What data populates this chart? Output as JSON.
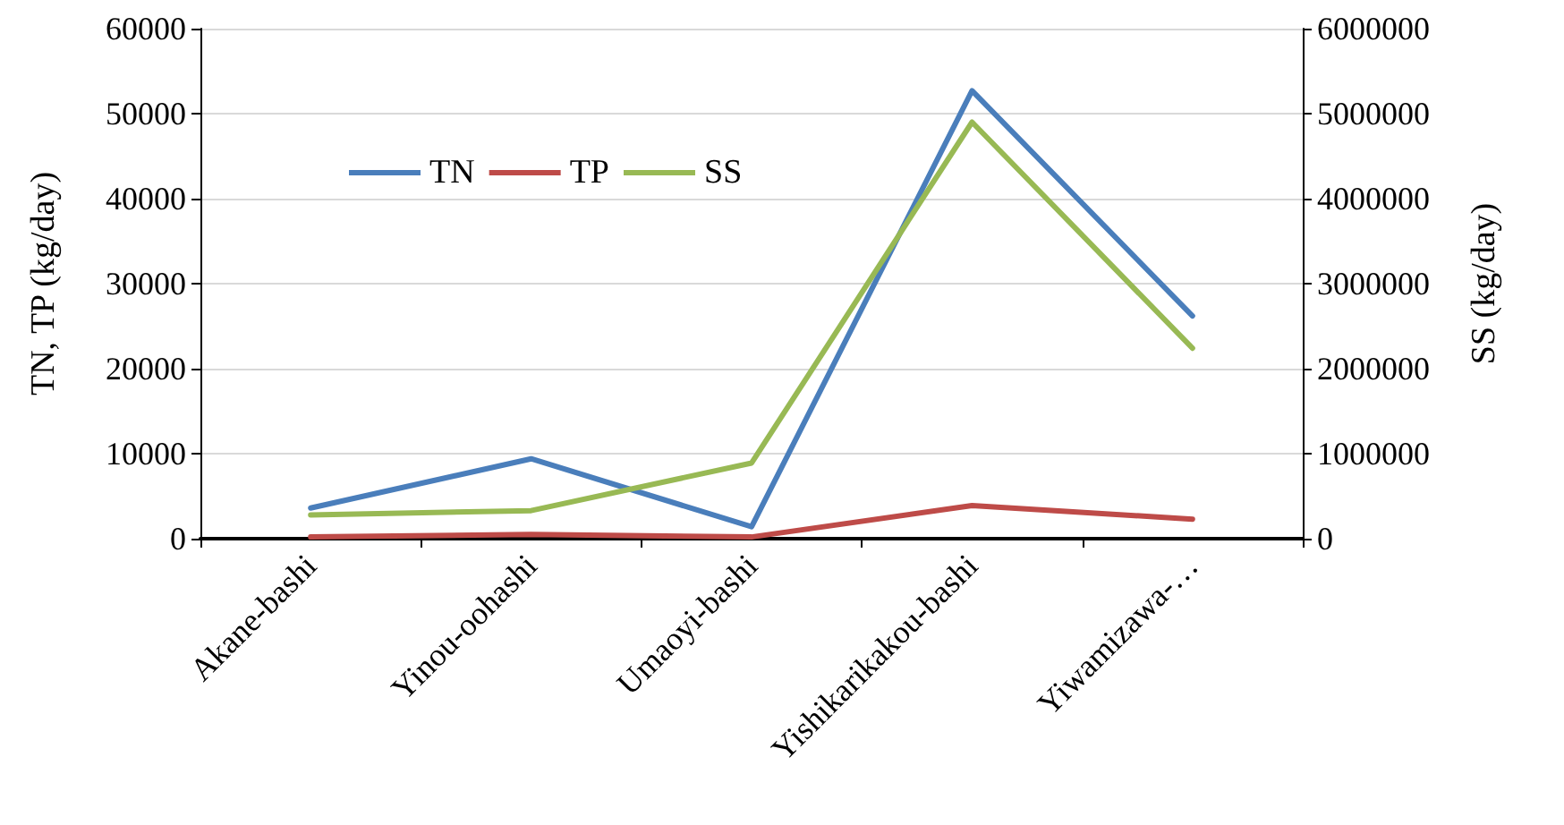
{
  "chart_data": {
    "type": "line",
    "ylabel": "TN, TP (kg/day)",
    "y2label": "SS (kg/day)",
    "categories": [
      "Akane-bashi",
      "Yinou-oohashi",
      "Umaoyi-bashi",
      "Yishikarikakou-bashi",
      "Yiwamizawa-…"
    ],
    "series": [
      {
        "name": "TN",
        "color": "#4a7ebb",
        "values": [
          3600,
          9400,
          1400,
          52700,
          26200
        ]
      },
      {
        "name": "TP",
        "color": "#be4b48",
        "values": [
          200,
          500,
          200,
          3900,
          2300
        ]
      },
      {
        "name": "SS",
        "color": "#98b954",
        "values": [
          280000,
          330000,
          890000,
          4900000,
          2240000
        ],
        "axis": "y2"
      }
    ],
    "ylim": [
      0,
      60000
    ],
    "yticks": [
      0,
      10000,
      20000,
      30000,
      40000,
      50000,
      60000
    ],
    "y2lim": [
      0,
      6000000
    ],
    "y2ticks": [
      0,
      1000000,
      2000000,
      3000000,
      4000000,
      5000000,
      6000000
    ],
    "grid": "y",
    "legend": "top left",
    "marker": "none",
    "line_style": "solid"
  }
}
